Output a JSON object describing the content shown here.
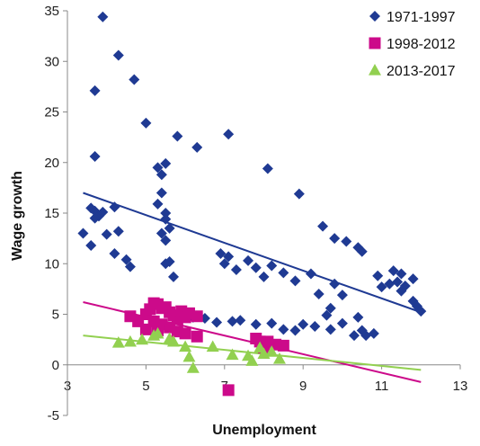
{
  "chart_data": {
    "type": "scatter",
    "xlabel": "Unemployment",
    "ylabel": "Wage growth",
    "xlim": [
      3,
      13
    ],
    "ylim": [
      -5,
      35
    ],
    "x_ticks": [
      3,
      5,
      7,
      9,
      11,
      13
    ],
    "y_ticks": [
      -5,
      0,
      5,
      10,
      15,
      20,
      25,
      30,
      35
    ],
    "grid": false,
    "legend_position": "top-right",
    "series": [
      {
        "name": "1971-1997",
        "marker": "diamond",
        "color": "#1f3a93",
        "points": [
          [
            3.9,
            34.4
          ],
          [
            4.3,
            30.6
          ],
          [
            3.7,
            27.1
          ],
          [
            4.7,
            28.2
          ],
          [
            3.7,
            20.6
          ],
          [
            5.0,
            23.9
          ],
          [
            5.8,
            22.6
          ],
          [
            6.3,
            21.5
          ],
          [
            7.1,
            22.8
          ],
          [
            8.1,
            19.4
          ],
          [
            5.3,
            19.5
          ],
          [
            5.5,
            19.9
          ],
          [
            5.4,
            18.8
          ],
          [
            5.4,
            17.0
          ],
          [
            5.3,
            15.9
          ],
          [
            5.5,
            15.0
          ],
          [
            5.5,
            14.4
          ],
          [
            5.6,
            13.5
          ],
          [
            5.4,
            13.0
          ],
          [
            5.5,
            12.3
          ],
          [
            5.6,
            10.2
          ],
          [
            5.5,
            10.0
          ],
          [
            5.7,
            8.7
          ],
          [
            3.6,
            15.5
          ],
          [
            3.7,
            15.2
          ],
          [
            3.8,
            14.7
          ],
          [
            3.7,
            14.5
          ],
          [
            3.9,
            15.1
          ],
          [
            4.2,
            15.6
          ],
          [
            4.0,
            12.9
          ],
          [
            3.4,
            13.0
          ],
          [
            3.6,
            11.8
          ],
          [
            4.3,
            13.2
          ],
          [
            4.2,
            11.0
          ],
          [
            4.5,
            10.4
          ],
          [
            4.6,
            9.7
          ],
          [
            8.9,
            16.9
          ],
          [
            9.5,
            13.7
          ],
          [
            9.8,
            12.5
          ],
          [
            10.1,
            12.2
          ],
          [
            10.4,
            11.6
          ],
          [
            10.5,
            11.2
          ],
          [
            6.9,
            11.0
          ],
          [
            7.1,
            10.7
          ],
          [
            7.0,
            10.0
          ],
          [
            7.6,
            10.3
          ],
          [
            7.8,
            9.6
          ],
          [
            7.3,
            9.4
          ],
          [
            8.2,
            9.8
          ],
          [
            8.0,
            8.7
          ],
          [
            8.5,
            9.1
          ],
          [
            8.8,
            8.3
          ],
          [
            9.2,
            9.0
          ],
          [
            9.4,
            7.0
          ],
          [
            9.8,
            8.0
          ],
          [
            10.0,
            6.9
          ],
          [
            9.6,
            4.9
          ],
          [
            9.7,
            5.6
          ],
          [
            10.4,
            4.7
          ],
          [
            10.9,
            8.8
          ],
          [
            11.0,
            7.7
          ],
          [
            11.3,
            9.3
          ],
          [
            11.5,
            9.0
          ],
          [
            11.4,
            8.2
          ],
          [
            11.6,
            7.8
          ],
          [
            11.8,
            6.3
          ],
          [
            11.9,
            5.8
          ],
          [
            12.0,
            5.3
          ],
          [
            11.8,
            8.5
          ],
          [
            11.2,
            8.0
          ],
          [
            11.5,
            7.3
          ],
          [
            6.5,
            4.6
          ],
          [
            7.2,
            4.3
          ],
          [
            7.4,
            4.4
          ],
          [
            7.8,
            4.0
          ],
          [
            8.2,
            4.1
          ],
          [
            8.5,
            3.5
          ],
          [
            8.8,
            3.4
          ],
          [
            9.0,
            4.0
          ],
          [
            9.3,
            3.8
          ],
          [
            9.7,
            3.5
          ],
          [
            10.0,
            4.1
          ],
          [
            10.3,
            2.9
          ],
          [
            10.5,
            3.4
          ],
          [
            10.6,
            2.9
          ],
          [
            10.8,
            3.1
          ],
          [
            6.2,
            4.7
          ],
          [
            6.8,
            4.2
          ]
        ]
      },
      {
        "name": "1998-2012",
        "marker": "square",
        "color": "#cc0a8a",
        "points": [
          [
            4.6,
            4.8
          ],
          [
            4.8,
            4.3
          ],
          [
            5.0,
            5.0
          ],
          [
            5.1,
            5.5
          ],
          [
            5.2,
            6.1
          ],
          [
            5.3,
            6.0
          ],
          [
            5.4,
            5.6
          ],
          [
            5.5,
            5.7
          ],
          [
            5.6,
            5.2
          ],
          [
            5.7,
            4.9
          ],
          [
            5.8,
            4.5
          ],
          [
            5.9,
            5.3
          ],
          [
            6.0,
            4.7
          ],
          [
            6.1,
            5.1
          ],
          [
            6.3,
            4.8
          ],
          [
            5.2,
            4.3
          ],
          [
            5.4,
            4.0
          ],
          [
            5.6,
            3.7
          ],
          [
            5.8,
            3.3
          ],
          [
            6.0,
            3.1
          ],
          [
            6.3,
            2.8
          ],
          [
            5.0,
            3.5
          ],
          [
            5.3,
            3.4
          ],
          [
            7.8,
            2.6
          ],
          [
            7.9,
            2.3
          ],
          [
            8.1,
            2.3
          ],
          [
            8.3,
            2.0
          ],
          [
            8.5,
            1.9
          ],
          [
            8.0,
            1.7
          ],
          [
            7.1,
            -2.5
          ]
        ]
      },
      {
        "name": "2013-2017",
        "marker": "triangle",
        "color": "#92d050",
        "points": [
          [
            4.3,
            2.2
          ],
          [
            4.6,
            2.3
          ],
          [
            4.9,
            2.5
          ],
          [
            5.2,
            2.9
          ],
          [
            5.3,
            3.1
          ],
          [
            5.6,
            2.6
          ],
          [
            5.7,
            2.3
          ],
          [
            6.0,
            1.8
          ],
          [
            6.1,
            0.8
          ],
          [
            6.2,
            -0.3
          ],
          [
            6.7,
            1.8
          ],
          [
            7.2,
            1.0
          ],
          [
            7.6,
            0.9
          ],
          [
            7.9,
            1.7
          ],
          [
            7.7,
            0.4
          ],
          [
            8.0,
            1.1
          ],
          [
            8.2,
            1.3
          ],
          [
            8.4,
            0.6
          ]
        ]
      }
    ],
    "trendlines": [
      {
        "series": "1971-1997",
        "color": "#1f3a93",
        "x": [
          3.4,
          12.0
        ],
        "y": [
          17.0,
          5.2
        ]
      },
      {
        "series": "1998-2012",
        "color": "#cc0a8a",
        "x": [
          3.4,
          12.0
        ],
        "y": [
          6.2,
          -1.7
        ]
      },
      {
        "series": "2013-2017",
        "color": "#92d050",
        "x": [
          3.4,
          12.0
        ],
        "y": [
          2.9,
          -0.5
        ]
      }
    ]
  }
}
